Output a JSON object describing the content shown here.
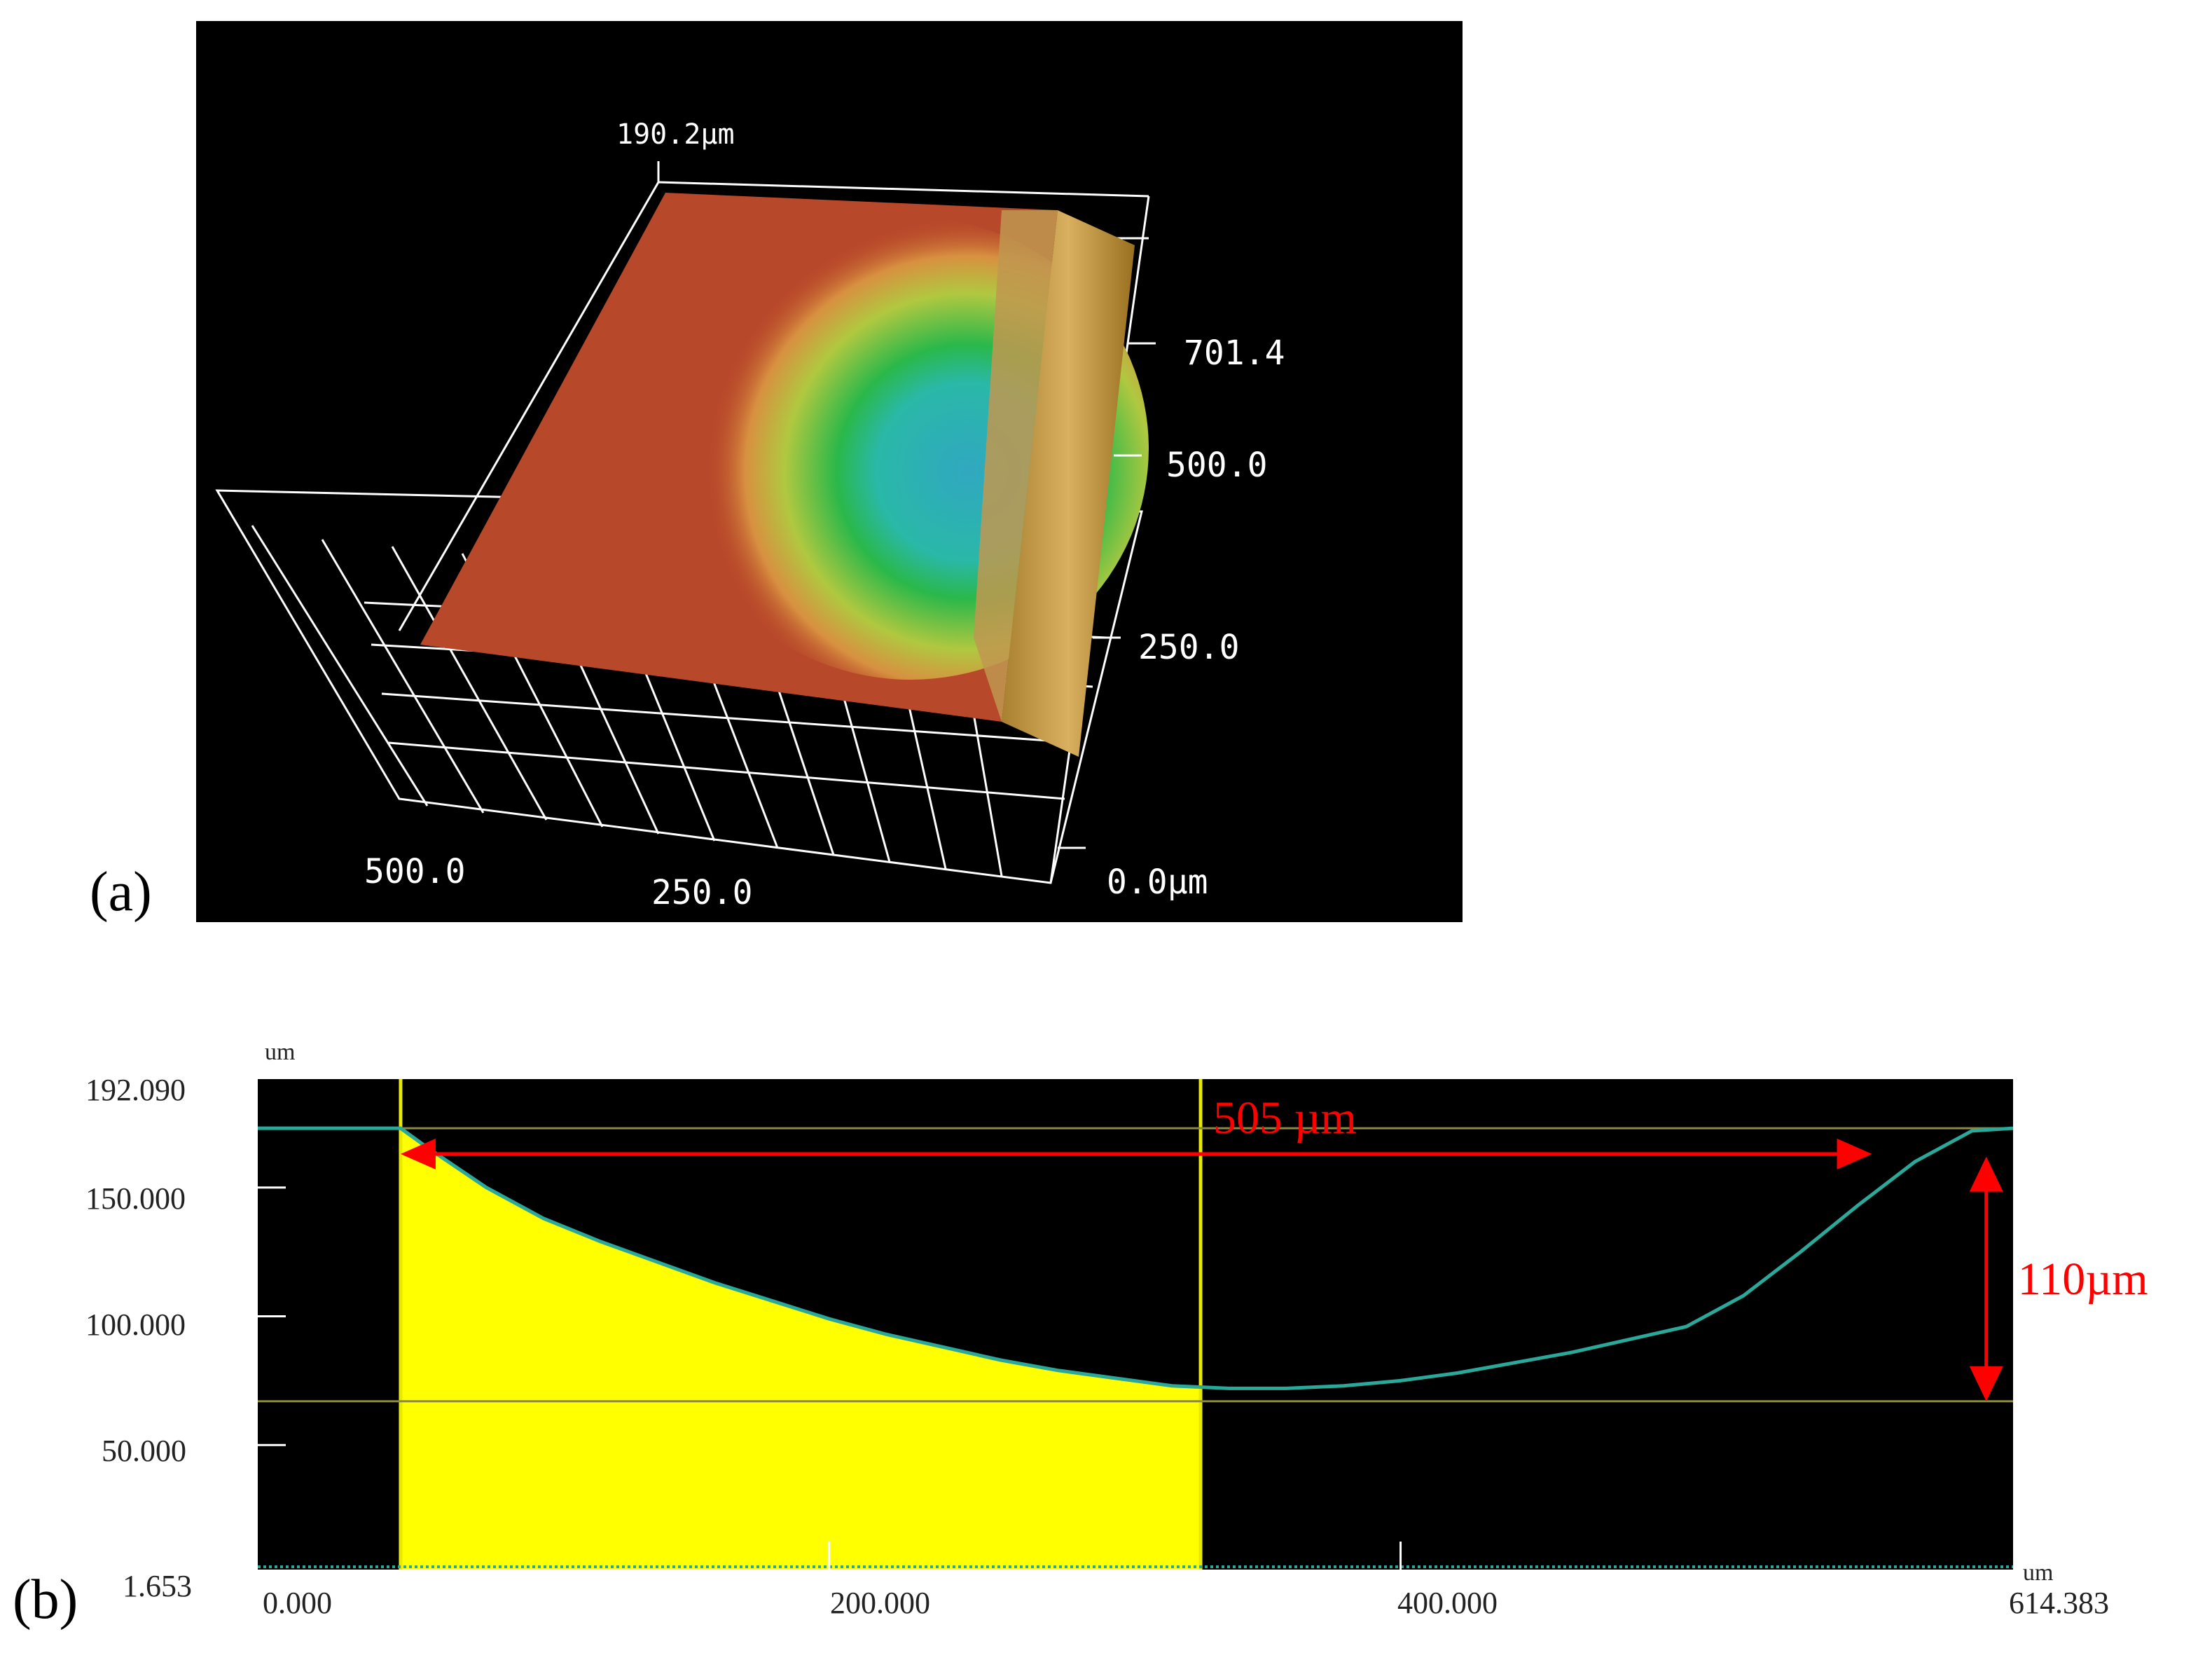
{
  "panel_labels": {
    "a": "(a)",
    "b": "(b)"
  },
  "surface_3d": {
    "height_label": "190.2µm",
    "y_axis_labels": [
      "701.4",
      "500.0",
      "250.0"
    ],
    "x_axis_labels": [
      "500.0",
      "250.0",
      "0.0µm"
    ],
    "colors": {
      "plateau": "#b8482a",
      "pit_mid": "#2ab84a",
      "pit_bottom": "#2aaab8",
      "edge": "#c8a050"
    }
  },
  "chart_data": {
    "type": "area",
    "x_unit": "um",
    "y_unit": "um",
    "xlim": [
      0,
      614.383
    ],
    "ylim": [
      1.653,
      192.09
    ],
    "x_tick_labels": [
      "0.000",
      "200.000",
      "400.000",
      "614.383"
    ],
    "y_tick_labels": [
      "192.090",
      "150.000",
      "100.000",
      "50.000",
      "1.653"
    ],
    "y_ticks": [
      150,
      100,
      50
    ],
    "x_ticks": [
      200,
      400
    ],
    "series": [
      {
        "color": "#2aa89a",
        "x": [
          0,
          25,
          50,
          60,
          80,
          100,
          120,
          140,
          160,
          180,
          200,
          220,
          240,
          260,
          280,
          300,
          320,
          340,
          360,
          380,
          400,
          420,
          440,
          460,
          480,
          500,
          520,
          540,
          560,
          580,
          600,
          614.383
        ],
        "y": [
          173,
          173,
          173,
          165,
          150,
          138,
          129,
          121,
          113,
          106,
          99,
          93,
          88,
          83,
          79,
          76,
          73,
          72,
          72,
          73,
          75,
          78,
          82,
          86,
          91,
          96,
          108,
          125,
          143,
          160,
          172,
          173
        ]
      }
    ],
    "shaded_region": {
      "x_start": 50,
      "x_end": 330,
      "color": "#ffff00"
    },
    "cursor_lines": {
      "x": [
        50,
        330
      ],
      "y": [
        173,
        67
      ],
      "color": "#c8c800"
    },
    "annotations": {
      "width": {
        "text": "505 µm",
        "x_start": 50,
        "x_end": 565,
        "y": 163
      },
      "depth": {
        "text": "110µm",
        "y_start": 162,
        "y_end": 67,
        "x": 605
      }
    }
  }
}
